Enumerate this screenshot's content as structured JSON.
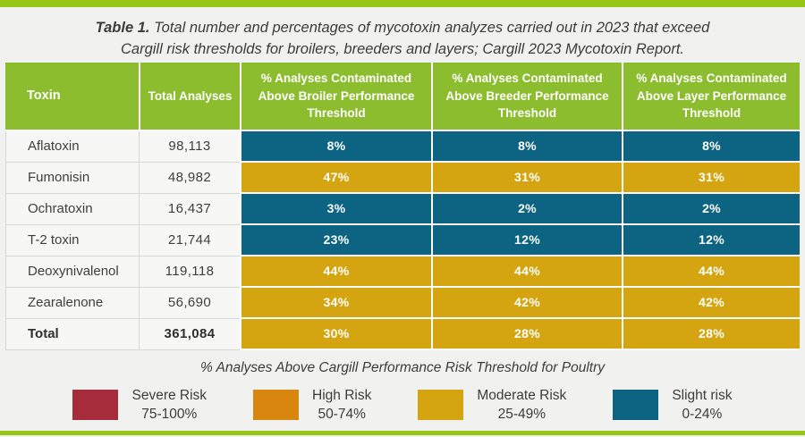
{
  "caption": {
    "label": "Table 1.",
    "line1": " Total number and percentages of mycotoxin analyzes carried out in 2023 that exceed",
    "line2": "Cargill risk thresholds for broilers, breeders and layers; Cargill 2023 Mycotoxin Report."
  },
  "colors": {
    "bar_green": "#97c716",
    "header_green": "#8cbd2e",
    "page_bg": "#f1f1ef",
    "cell_bg": "#f7f7f6",
    "severe": "#a62c3c",
    "high": "#d9860f",
    "moderate": "#d5a511",
    "slight": "#0d6382"
  },
  "table": {
    "headers": [
      "Toxin",
      "Total Analyses",
      "% Analyses Contaminated Above Broiler Performance Threshold",
      "% Analyses Contaminated Above Breeder Performance Threshold",
      "% Analyses Contaminated Above Layer Performance Threshold"
    ],
    "rows": [
      {
        "toxin": "Aflatoxin",
        "total": "98,113",
        "broiler": {
          "value": "8%",
          "risk": "slight"
        },
        "breeder": {
          "value": "8%",
          "risk": "slight"
        },
        "layer": {
          "value": "8%",
          "risk": "slight"
        }
      },
      {
        "toxin": "Fumonisin",
        "total": "48,982",
        "broiler": {
          "value": "47%",
          "risk": "moderate"
        },
        "breeder": {
          "value": "31%",
          "risk": "moderate"
        },
        "layer": {
          "value": "31%",
          "risk": "moderate"
        }
      },
      {
        "toxin": "Ochratoxin",
        "total": "16,437",
        "broiler": {
          "value": "3%",
          "risk": "slight"
        },
        "breeder": {
          "value": "2%",
          "risk": "slight"
        },
        "layer": {
          "value": "2%",
          "risk": "slight"
        }
      },
      {
        "toxin": "T-2 toxin",
        "total": "21,744",
        "broiler": {
          "value": "23%",
          "risk": "slight"
        },
        "breeder": {
          "value": "12%",
          "risk": "slight"
        },
        "layer": {
          "value": "12%",
          "risk": "slight"
        }
      },
      {
        "toxin": "Deoxynivalenol",
        "total": "119,118",
        "broiler": {
          "value": "44%",
          "risk": "moderate"
        },
        "breeder": {
          "value": "44%",
          "risk": "moderate"
        },
        "layer": {
          "value": "44%",
          "risk": "moderate"
        }
      },
      {
        "toxin": "Zearalenone",
        "total": "56,690",
        "broiler": {
          "value": "34%",
          "risk": "moderate"
        },
        "breeder": {
          "value": "42%",
          "risk": "moderate"
        },
        "layer": {
          "value": "42%",
          "risk": "moderate"
        }
      },
      {
        "toxin": "Total",
        "total": "361,084",
        "broiler": {
          "value": "30%",
          "risk": "moderate"
        },
        "breeder": {
          "value": "28%",
          "risk": "moderate"
        },
        "layer": {
          "value": "28%",
          "risk": "moderate"
        }
      }
    ]
  },
  "legend": {
    "title": "% Analyses Above Cargill Performance Risk Threshold for Poultry",
    "items": [
      {
        "label": "Severe Risk",
        "range": "75-100%",
        "risk": "severe"
      },
      {
        "label": "High Risk",
        "range": "50-74%",
        "risk": "high"
      },
      {
        "label": "Moderate Risk",
        "range": "25-49%",
        "risk": "moderate"
      },
      {
        "label": "Slight risk",
        "range": "0-24%",
        "risk": "slight"
      }
    ]
  },
  "chart_data": {
    "type": "table",
    "title": "Table 1. Total number and percentages of mycotoxin analyzes carried out in 2023 that exceed Cargill risk thresholds for broilers, breeders and layers; Cargill 2023 Mycotoxin Report.",
    "columns": [
      "Toxin",
      "Total Analyses",
      "% Analyses Contaminated Above Broiler Performance Threshold",
      "% Analyses Contaminated Above Breeder Performance Threshold",
      "% Analyses Contaminated Above Layer Performance Threshold"
    ],
    "rows": [
      [
        "Aflatoxin",
        98113,
        8,
        8,
        8
      ],
      [
        "Fumonisin",
        48982,
        47,
        31,
        31
      ],
      [
        "Ochratoxin",
        16437,
        3,
        2,
        2
      ],
      [
        "T-2 toxin",
        21744,
        23,
        12,
        12
      ],
      [
        "Deoxynivalenol",
        119118,
        44,
        44,
        44
      ],
      [
        "Zearalenone",
        56690,
        34,
        42,
        42
      ],
      [
        "Total",
        361084,
        30,
        28,
        28
      ]
    ],
    "units": {
      "total_analyses": "count",
      "threshold_columns": "percent"
    },
    "color_coding": {
      "severe": {
        "range": "75-100%",
        "hex": "#a62c3c"
      },
      "high": {
        "range": "50-74%",
        "hex": "#d9860f"
      },
      "moderate": {
        "range": "25-49%",
        "hex": "#d5a511"
      },
      "slight": {
        "range": "0-24%",
        "hex": "#0d6382"
      }
    },
    "legend_title": "% Analyses Above Cargill Performance Risk Threshold for Poultry",
    "legend_position": "bottom"
  }
}
